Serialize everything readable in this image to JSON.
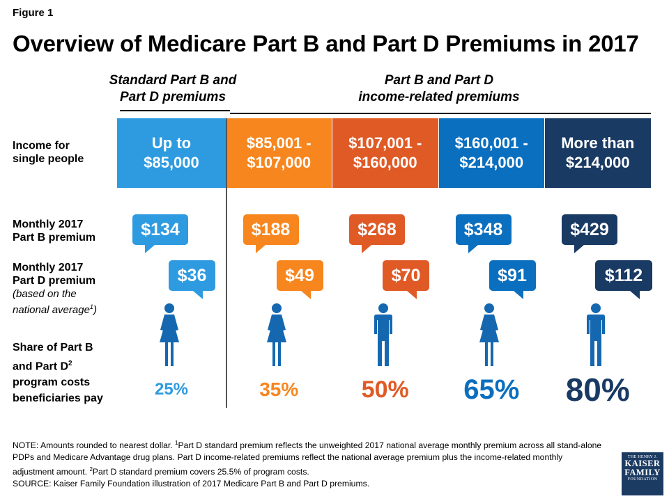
{
  "figure_label": "Figure 1",
  "title": "Overview of Medicare Part B and Part D Premiums in 2017",
  "group_headers": {
    "standard_line1": "Standard Part B and",
    "standard_line2": "Part D premiums",
    "income_related_line1": "Part B and Part D",
    "income_related_line2": "income-related premiums"
  },
  "row_labels": {
    "income_line1": "Income for",
    "income_line2": "single people",
    "partb_line1": "Monthly 2017",
    "partb_line2": "Part B premium",
    "partd_line1": "Monthly 2017",
    "partd_line2": "Part D premium",
    "partd_note1": "(based on the",
    "partd_note2": "national average",
    "partd_note_sup": "1",
    "partd_note_close": ")",
    "share_line1": "Share of Part B",
    "share_line2": "and Part D",
    "share_sup": "2",
    "share_line3": "program costs",
    "share_line4": "beneficiaries pay"
  },
  "chart_data": {
    "type": "table",
    "columns": [
      {
        "income_line1": "Up to",
        "income_line2": "$85,000",
        "part_b": "$134",
        "part_d": "$36",
        "share": "25%",
        "share_value": 25,
        "figure": "female",
        "color": "#2e9be0"
      },
      {
        "income_line1": "$85,001 -",
        "income_line2": "$107,000",
        "part_b": "$188",
        "part_d": "$49",
        "share": "35%",
        "share_value": 35,
        "figure": "female",
        "color": "#f7861e"
      },
      {
        "income_line1": "$107,001 -",
        "income_line2": "$160,000",
        "part_b": "$268",
        "part_d": "$70",
        "share": "50%",
        "share_value": 50,
        "figure": "male",
        "color": "#e05a26"
      },
      {
        "income_line1": "$160,001 -",
        "income_line2": "$214,000",
        "part_b": "$348",
        "part_d": "$91",
        "share": "65%",
        "share_value": 65,
        "figure": "female",
        "color": "#0b6fbf"
      },
      {
        "income_line1": "More than",
        "income_line2": "$214,000",
        "part_b": "$429",
        "part_d": "$112",
        "share": "80%",
        "share_value": 80,
        "figure": "male",
        "color": "#193a63"
      }
    ],
    "figure_color": "#1568b0"
  },
  "notes": {
    "n1": "NOTE: Amounts rounded to nearest dollar. ",
    "n1_sup": "1",
    "n2": "Part D standard premium reflects the unweighted 2017 national average monthly premium across all stand-alone PDPs and Medicare Advantage drug plans. Part D income-related premiums reflect the national average premium plus the income-related monthly adjustment amount. ",
    "n2_sup": "2",
    "n3": "Part D standard premium covers 25.5% of program costs.",
    "source": "SOURCE: Kaiser Family Foundation illustration of 2017 Medicare Part B and Part D premiums."
  },
  "logo": {
    "line1": "THE HENRY J.",
    "line2": "KAISER",
    "line3": "FAMILY",
    "line4": "FOUNDATION"
  }
}
